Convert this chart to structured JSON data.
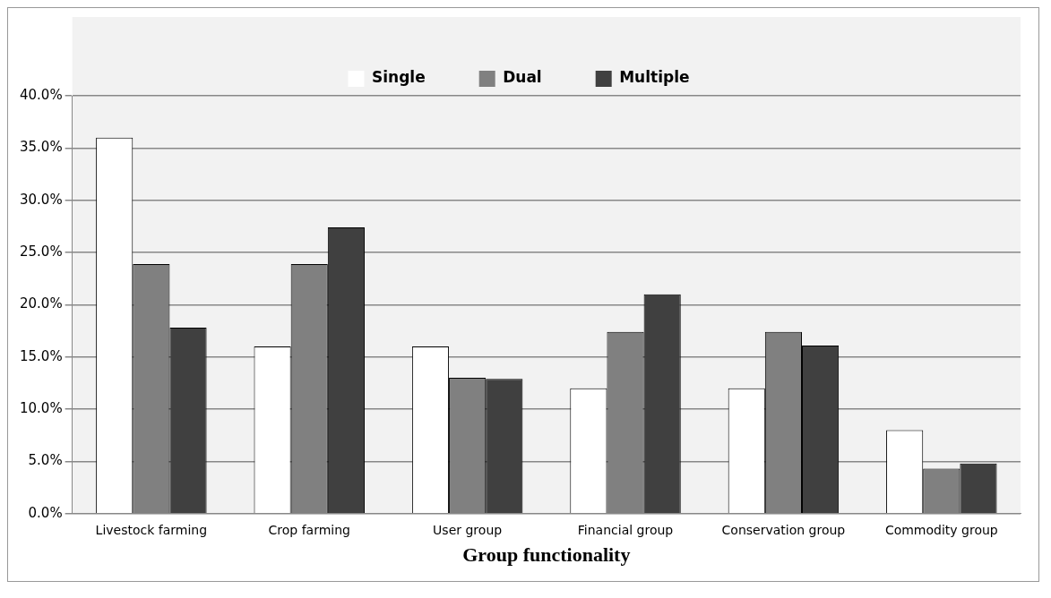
{
  "chart_data": {
    "type": "bar",
    "xlabel": "Group functionality",
    "categories": [
      "Livestock farming",
      "Crop farming",
      "User group",
      "Financial group",
      "Conservation group",
      "Commodity group"
    ],
    "series": [
      {
        "name": "Single",
        "color": "#ffffff",
        "values": [
          36.0,
          16.0,
          16.0,
          12.0,
          12.0,
          8.0
        ]
      },
      {
        "name": "Dual",
        "color": "#808080",
        "values": [
          23.9,
          23.9,
          13.0,
          17.4,
          17.4,
          4.3
        ]
      },
      {
        "name": "Multiple",
        "color": "#404040",
        "values": [
          17.8,
          27.4,
          12.9,
          21.0,
          16.1,
          4.8
        ]
      }
    ],
    "ylim": [
      0,
      40
    ],
    "yticks": [
      {
        "value": 0,
        "label": "0.0%"
      },
      {
        "value": 5,
        "label": "5.0%"
      },
      {
        "value": 10,
        "label": "10.0%"
      },
      {
        "value": 15,
        "label": "15.0%"
      },
      {
        "value": 20,
        "label": "20.0%"
      },
      {
        "value": 25,
        "label": "25.0%"
      },
      {
        "value": 30,
        "label": "30.0%"
      },
      {
        "value": 35,
        "label": "35.0%"
      },
      {
        "value": 40,
        "label": "40.0%"
      }
    ],
    "grid": "y",
    "legend": "top"
  }
}
